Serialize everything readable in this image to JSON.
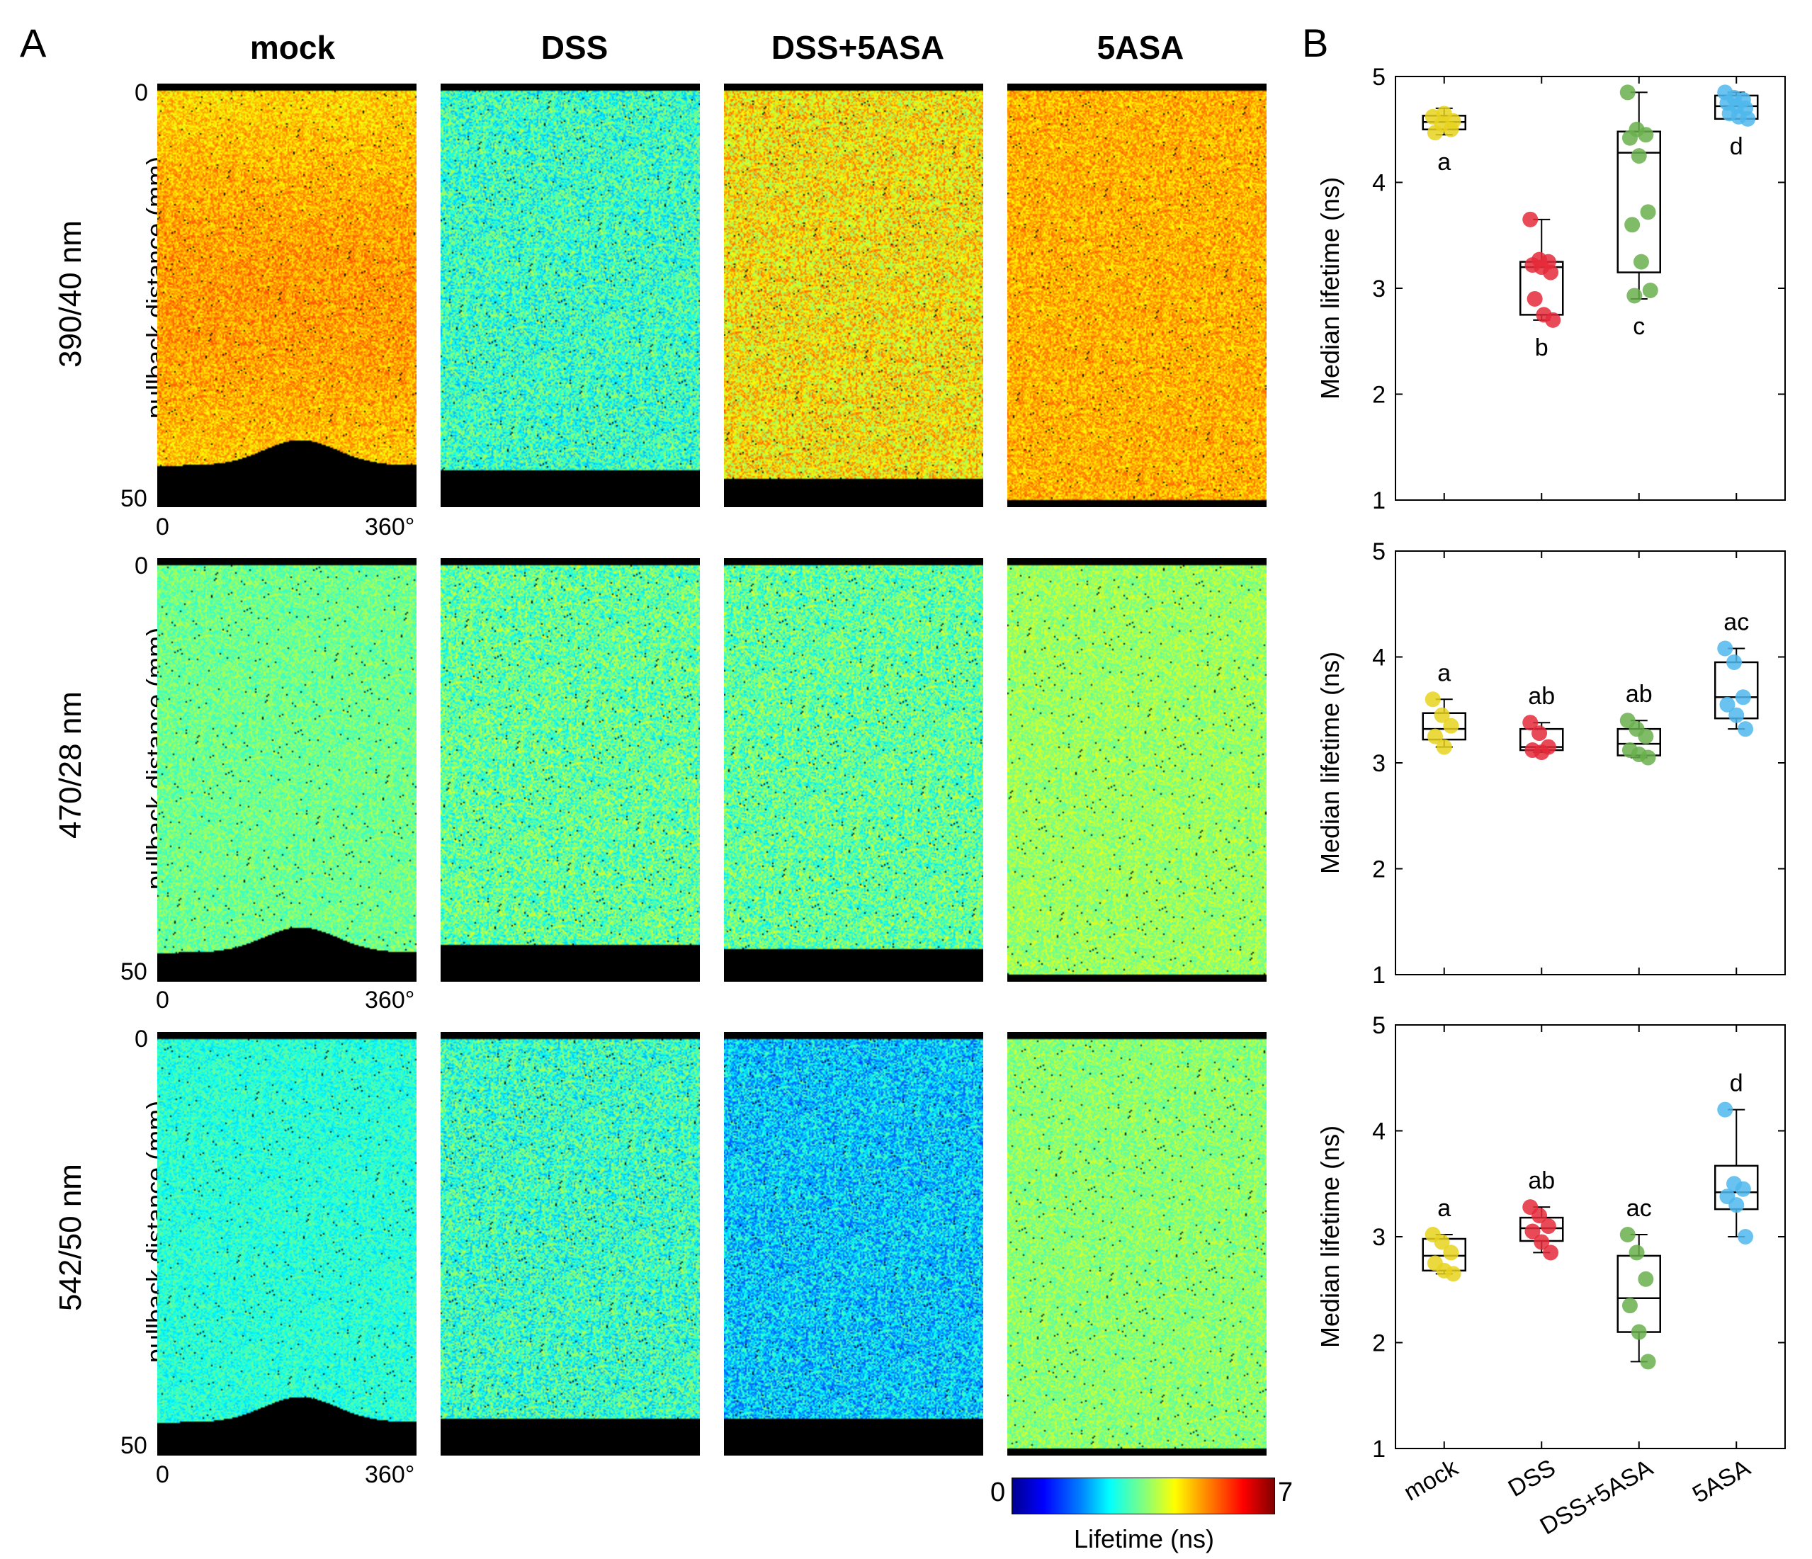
{
  "panel_a_label": "A",
  "panel_b_label": "B",
  "groups": [
    "mock",
    "DSS",
    "DSS+5ASA",
    "5ASA"
  ],
  "rows": [
    {
      "label": "390/40 nm",
      "ylabel": "pullback distance (mm)",
      "y_start": "0",
      "y_end": "50",
      "x_start": "0",
      "x_end": "360°"
    },
    {
      "label": "470/28 nm",
      "ylabel": "pullback distance (mm)",
      "y_start": "0",
      "y_end": "50",
      "x_start": "0",
      "x_end": "360°"
    },
    {
      "label": "542/50 nm",
      "ylabel": "pullback distance (mm)",
      "y_start": "0",
      "y_end": "50",
      "x_start": "0",
      "x_end": "360°"
    }
  ],
  "colorbar": {
    "min": "0",
    "max": "7",
    "title": "Lifetime (ns)"
  },
  "map_mean_lifetimes": [
    [
      4.6,
      3.0,
      4.5,
      4.9
    ],
    [
      3.4,
      3.3,
      3.3,
      3.7
    ],
    [
      2.9,
      3.0,
      2.3,
      3.6
    ]
  ],
  "colors": {
    "mock": "#e8d21e",
    "DSS": "#e52a3a",
    "DSS+5ASA": "#6ab04c",
    "5ASA": "#4fb7ec"
  },
  "chart_data": [
    {
      "type": "box",
      "title": "390/40 nm",
      "ylabel": "Median lifetime (ns)",
      "ylim": [
        1,
        5
      ],
      "yticks": [
        1,
        2,
        3,
        4,
        5
      ],
      "categories": [
        "mock",
        "DSS",
        "DSS+5ASA",
        "5ASA"
      ],
      "boxes": [
        {
          "min": 4.45,
          "q1": 4.5,
          "median": 4.57,
          "q3": 4.63,
          "max": 4.7
        },
        {
          "min": 2.7,
          "q1": 2.75,
          "median": 3.2,
          "q3": 3.25,
          "max": 3.65
        },
        {
          "min": 2.9,
          "q1": 3.15,
          "median": 4.28,
          "q3": 4.48,
          "max": 4.85
        },
        {
          "min": 4.6,
          "q1": 4.6,
          "median": 4.72,
          "q3": 4.82,
          "max": 4.85
        }
      ],
      "points": [
        [
          4.62,
          4.55,
          4.5,
          4.47,
          4.65,
          4.58
        ],
        [
          3.65,
          3.27,
          3.25,
          3.22,
          3.2,
          3.15,
          2.9,
          2.75,
          2.7
        ],
        [
          4.85,
          4.5,
          4.45,
          4.42,
          4.25,
          3.72,
          3.6,
          3.25,
          2.98,
          2.93
        ],
        [
          4.85,
          4.8,
          4.78,
          4.75,
          4.72,
          4.7,
          4.65,
          4.62,
          4.6
        ]
      ],
      "letters": [
        "a",
        "b",
        "c",
        "d"
      ]
    },
    {
      "type": "box",
      "title": "470/28 nm",
      "ylabel": "Median lifetime (ns)",
      "ylim": [
        1,
        5
      ],
      "yticks": [
        1,
        2,
        3,
        4,
        5
      ],
      "categories": [
        "mock",
        "DSS",
        "DSS+5ASA",
        "5ASA"
      ],
      "boxes": [
        {
          "min": 3.15,
          "q1": 3.22,
          "median": 3.32,
          "q3": 3.47,
          "max": 3.6
        },
        {
          "min": 3.1,
          "q1": 3.12,
          "median": 3.15,
          "q3": 3.32,
          "max": 3.38
        },
        {
          "min": 3.05,
          "q1": 3.07,
          "median": 3.18,
          "q3": 3.32,
          "max": 3.4
        },
        {
          "min": 3.32,
          "q1": 3.42,
          "median": 3.62,
          "q3": 3.95,
          "max": 4.08
        }
      ],
      "points": [
        [
          3.6,
          3.45,
          3.35,
          3.25,
          3.15
        ],
        [
          3.38,
          3.28,
          3.15,
          3.12,
          3.1
        ],
        [
          3.4,
          3.32,
          3.25,
          3.12,
          3.08,
          3.05
        ],
        [
          4.08,
          3.95,
          3.62,
          3.55,
          3.45,
          3.32
        ]
      ],
      "letters": [
        "a",
        "ab",
        "ab",
        "ac"
      ]
    },
    {
      "type": "box",
      "title": "542/50 nm",
      "ylabel": "Median lifetime (ns)",
      "ylim": [
        1,
        5
      ],
      "yticks": [
        1,
        2,
        3,
        4,
        5
      ],
      "categories": [
        "mock",
        "DSS",
        "DSS+5ASA",
        "5ASA"
      ],
      "boxes": [
        {
          "min": 2.65,
          "q1": 2.68,
          "median": 2.82,
          "q3": 2.98,
          "max": 3.02
        },
        {
          "min": 2.85,
          "q1": 2.96,
          "median": 3.08,
          "q3": 3.18,
          "max": 3.28
        },
        {
          "min": 1.82,
          "q1": 2.1,
          "median": 2.42,
          "q3": 2.82,
          "max": 3.02
        },
        {
          "min": 3.0,
          "q1": 3.26,
          "median": 3.42,
          "q3": 3.67,
          "max": 4.2
        }
      ],
      "points": [
        [
          3.02,
          2.95,
          2.85,
          2.75,
          2.68,
          2.65
        ],
        [
          3.28,
          3.2,
          3.1,
          3.05,
          2.95,
          2.85
        ],
        [
          3.02,
          2.85,
          2.6,
          2.35,
          2.1,
          1.82
        ],
        [
          4.2,
          3.5,
          3.45,
          3.38,
          3.3,
          3.0
        ]
      ],
      "letters": [
        "a",
        "ab",
        "ac",
        "d"
      ]
    }
  ]
}
